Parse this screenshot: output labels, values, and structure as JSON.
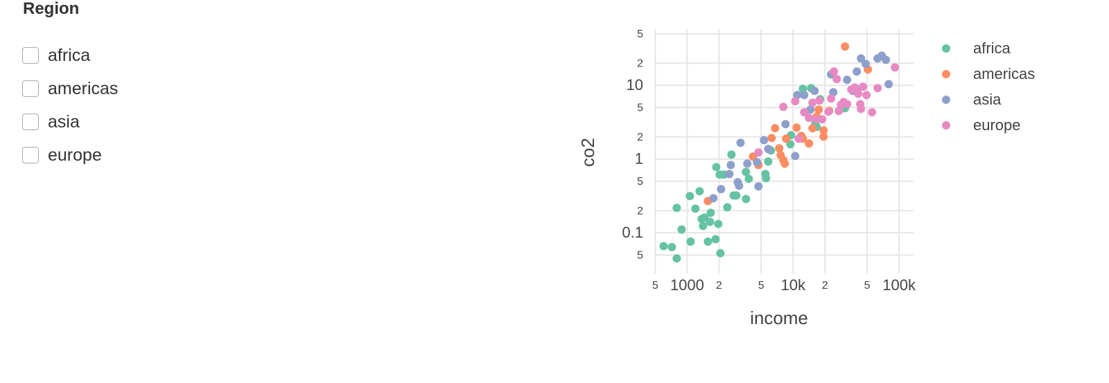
{
  "sidebar": {
    "title": "Region",
    "options": [
      "africa",
      "americas",
      "asia",
      "europe"
    ]
  },
  "chart_data": {
    "type": "scatter",
    "x_label": "income",
    "y_label": "co2",
    "xscale": "log",
    "yscale": "log",
    "grid": true,
    "legend": "right",
    "xlim": [
      490,
      137000
    ],
    "xticks": [
      {
        "value": 500,
        "label": "5"
      },
      1000,
      {
        "value": 2000,
        "label": "2"
      },
      {
        "value": 5000,
        "label": "5"
      },
      {
        "value": 10000,
        "label": "10k"
      },
      {
        "value": 20000,
        "label": "2"
      },
      {
        "value": 50000,
        "label": "5"
      },
      {
        "value": 100000,
        "label": "100k"
      }
    ],
    "ylim": [
      0.028,
      58
    ],
    "yticks": [
      {
        "value": 0.05,
        "label": "5"
      },
      0.1,
      {
        "value": 0.2,
        "label": "2"
      },
      {
        "value": 0.5,
        "label": "5"
      },
      1,
      {
        "value": 2,
        "label": "2"
      },
      {
        "value": 5,
        "label": "5"
      },
      10,
      {
        "value": 20,
        "label": "2"
      },
      {
        "value": 50,
        "label": "5"
      }
    ],
    "series": [
      {
        "name": "africa",
        "color": "#66c2a5",
        "x": [
          600,
          718,
          798,
          798,
          887,
          1062,
          1078,
          1198,
          1311,
          1372,
          1414,
          1457,
          1570,
          1644,
          1668,
          1854,
          1883,
          1968,
          2028,
          2060,
          2220,
          2393,
          2620,
          2742,
          2911,
          3594,
          3594,
          3819,
          5480,
          5560,
          5821,
          6180,
          9420,
          12360,
          14800,
          16200,
          16680,
          17990,
          30900,
          9550
        ],
        "values": [
          0.066,
          0.064,
          0.045,
          0.218,
          0.111,
          0.315,
          0.076,
          0.213,
          0.366,
          0.154,
          0.124,
          0.161,
          0.076,
          0.141,
          0.187,
          0.082,
          0.78,
          0.132,
          0.615,
          0.053,
          0.615,
          0.222,
          1.15,
          0.321,
          0.321,
          0.288,
          0.67,
          0.54,
          0.628,
          0.552,
          0.927,
          1.31,
          1.59,
          8.98,
          9.17,
          3.05,
          2.73,
          6.49,
          4.9,
          2.11
        ]
      },
      {
        "name": "americas",
        "color": "#fc8d62",
        "x": [
          1570,
          4180,
          4710,
          6270,
          6760,
          7400,
          7630,
          8090,
          8350,
          8600,
          10790,
          11980,
          12360,
          14130,
          15240,
          17450,
          19400,
          19400,
          21880,
          30900,
          50800,
          16680
        ],
        "values": [
          0.27,
          1.08,
          0.832,
          1.93,
          2.62,
          1.4,
          1.13,
          0.968,
          0.869,
          1.89,
          2.67,
          2.06,
          1.89,
          1.63,
          2.62,
          4.69,
          2.45,
          2.02,
          4.5,
          33.6,
          16.4,
          3.78
        ]
      },
      {
        "name": "asia",
        "color": "#8da0cb",
        "x": [
          1771,
          2090,
          2505,
          2580,
          3000,
          3090,
          3190,
          3700,
          4570,
          4710,
          5310,
          8480,
          10470,
          10950,
          12730,
          14560,
          15950,
          22860,
          23930,
          32350,
          36500,
          39910,
          39910,
          43710,
          48560,
          62700,
          68650,
          75100,
          79800,
          5821
        ],
        "values": [
          0.294,
          0.391,
          0.628,
          0.832,
          0.485,
          0.435,
          1.66,
          0.869,
          0.907,
          0.426,
          1.81,
          2.98,
          1.1,
          7.39,
          7.39,
          4.69,
          8.41,
          14.1,
          8.05,
          11.9,
          8.41,
          8.98,
          15.4,
          23.2,
          19.5,
          23.2,
          25.3,
          22.2,
          10.4,
          1.37
        ]
      },
      {
        "name": "europe",
        "color": "#e78ac3",
        "x": [
          4710,
          8090,
          10470,
          11280,
          12730,
          14130,
          15240,
          16680,
          17720,
          18830,
          21550,
          22860,
          24300,
          25820,
          27000,
          28250,
          30000,
          32350,
          35400,
          38190,
          41120,
          43050,
          45710,
          49300,
          55600,
          62700,
          91400,
          43710
        ],
        "values": [
          1.23,
          5.12,
          6.08,
          1.89,
          4.31,
          3.62,
          5.82,
          3.47,
          6.21,
          3.47,
          4.4,
          6.63,
          15.4,
          12.2,
          4.5,
          5.46,
          5.95,
          5.57,
          8.79,
          9.37,
          7.71,
          5.57,
          9.58,
          7.39,
          4.31,
          9.17,
          17.5,
          4.8
        ]
      }
    ]
  }
}
